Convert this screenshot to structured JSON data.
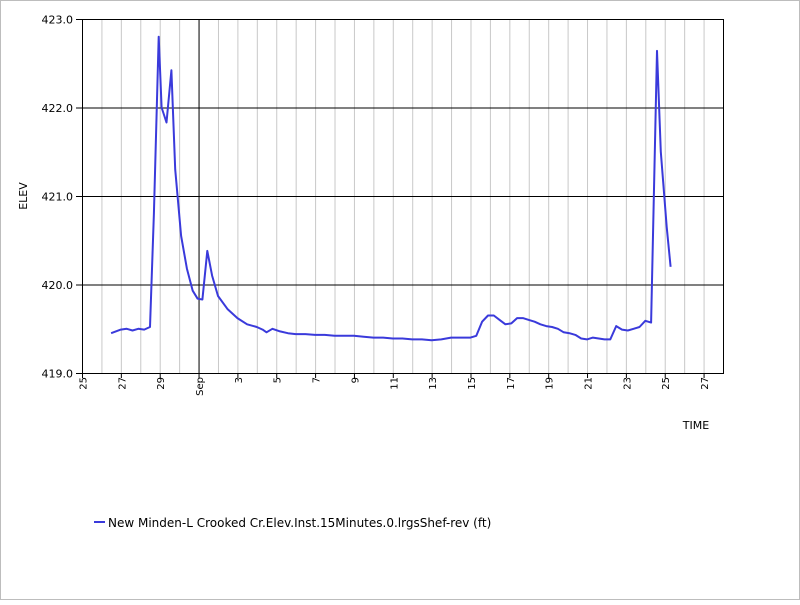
{
  "chart_data": {
    "type": "line",
    "title": "",
    "xlabel": "TIME",
    "ylabel": "ELEV",
    "ylim": [
      419.0,
      423.0
    ],
    "xlim": [
      25,
      58
    ],
    "grid": true,
    "legend_placement": "bottom-left",
    "colors": {
      "series": "#3a3adb",
      "major_grid": "#000000",
      "minor_grid": "#c8c8c8"
    },
    "y_ticks": [
      {
        "value": 419.0,
        "label": "419.0"
      },
      {
        "value": 420.0,
        "label": "420.0"
      },
      {
        "value": 421.0,
        "label": "421.0"
      },
      {
        "value": 422.0,
        "label": "422.0"
      },
      {
        "value": 423.0,
        "label": "423.0"
      }
    ],
    "x_ticks": [
      {
        "value": 25,
        "label": "25"
      },
      {
        "value": 27,
        "label": "27"
      },
      {
        "value": 29,
        "label": "29"
      },
      {
        "value": 31,
        "label": "Sep",
        "major": true
      },
      {
        "value": 33,
        "label": "3"
      },
      {
        "value": 35,
        "label": "5"
      },
      {
        "value": 37,
        "label": "7"
      },
      {
        "value": 39,
        "label": "9"
      },
      {
        "value": 41,
        "label": "11"
      },
      {
        "value": 43,
        "label": "13"
      },
      {
        "value": 45,
        "label": "15"
      },
      {
        "value": 47,
        "label": "17"
      },
      {
        "value": 49,
        "label": "19"
      },
      {
        "value": 51,
        "label": "21"
      },
      {
        "value": 53,
        "label": "23"
      },
      {
        "value": 55,
        "label": "25"
      },
      {
        "value": 57,
        "label": "27"
      }
    ],
    "series": [
      {
        "name": "New Minden-L Crooked Cr.Elev.Inst.15Minutes.0.lrgsShef-rev (ft)",
        "x": [
          26.5,
          27.0,
          27.3,
          27.6,
          27.9,
          28.2,
          28.5,
          28.7,
          28.95,
          29.1,
          29.35,
          29.6,
          29.8,
          30.1,
          30.4,
          30.7,
          30.95,
          31.2,
          31.45,
          31.7,
          32.0,
          32.5,
          33.0,
          33.5,
          34.0,
          34.3,
          34.5,
          34.8,
          35.2,
          35.6,
          36.0,
          36.5,
          37.0,
          37.5,
          38.0,
          38.5,
          39.0,
          39.5,
          40.0,
          40.5,
          41.0,
          41.5,
          42.0,
          42.5,
          43.0,
          43.5,
          44.0,
          44.5,
          45.0,
          45.3,
          45.6,
          45.9,
          46.2,
          46.5,
          46.8,
          47.1,
          47.4,
          47.7,
          48.0,
          48.3,
          48.6,
          48.9,
          49.2,
          49.5,
          49.8,
          50.1,
          50.4,
          50.7,
          51.0,
          51.3,
          51.6,
          51.9,
          52.2,
          52.5,
          52.8,
          53.1,
          53.4,
          53.7,
          54.0,
          54.3,
          54.6,
          54.8,
          55.1,
          55.3
        ],
        "values": [
          419.45,
          419.49,
          419.5,
          419.48,
          419.5,
          419.49,
          419.52,
          420.8,
          422.8,
          422.0,
          421.83,
          422.42,
          421.3,
          420.55,
          420.18,
          419.93,
          419.84,
          419.83,
          420.38,
          420.1,
          419.87,
          419.72,
          419.62,
          419.55,
          419.52,
          419.49,
          419.46,
          419.5,
          419.47,
          419.45,
          419.44,
          419.44,
          419.43,
          419.43,
          419.42,
          419.42,
          419.42,
          419.41,
          419.4,
          419.4,
          419.39,
          419.39,
          419.38,
          419.38,
          419.37,
          419.38,
          419.4,
          419.4,
          419.4,
          419.42,
          419.58,
          419.65,
          419.65,
          419.6,
          419.55,
          419.56,
          419.62,
          419.62,
          419.6,
          419.58,
          419.55,
          419.53,
          419.52,
          419.5,
          419.46,
          419.45,
          419.43,
          419.39,
          419.38,
          419.4,
          419.39,
          419.38,
          419.38,
          419.53,
          419.49,
          419.48,
          419.5,
          419.52,
          419.59,
          419.57,
          422.64,
          421.5,
          420.65,
          420.2
        ]
      }
    ]
  }
}
